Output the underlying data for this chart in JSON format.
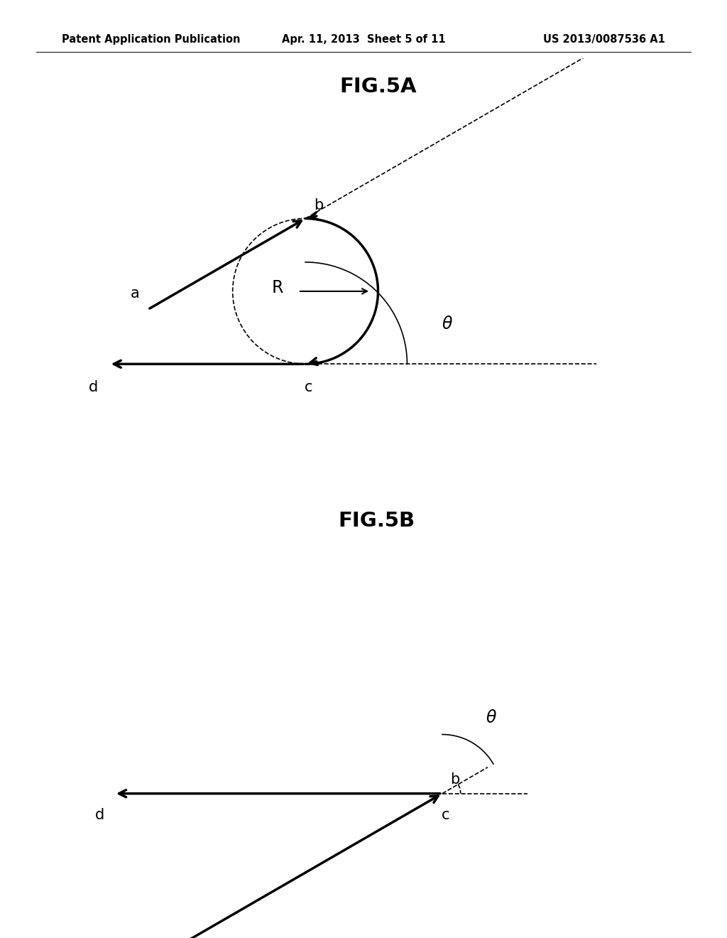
{
  "bg_color": "#ffffff",
  "header_left": "Patent Application Publication",
  "header_center": "Apr. 11, 2013  Sheet 5 of 11",
  "header_right": "US 2013/0087536 A1",
  "fig5a_title": "FIG.5A",
  "fig5b_title": "FIG.5B",
  "header_fontsize": 10.5,
  "title_fontsize": 21,
  "label_fontsize": 15,
  "theta_fontsize": 17,
  "R_fontsize": 17,
  "lw_thick": 2.5,
  "lw_thin": 1.2
}
